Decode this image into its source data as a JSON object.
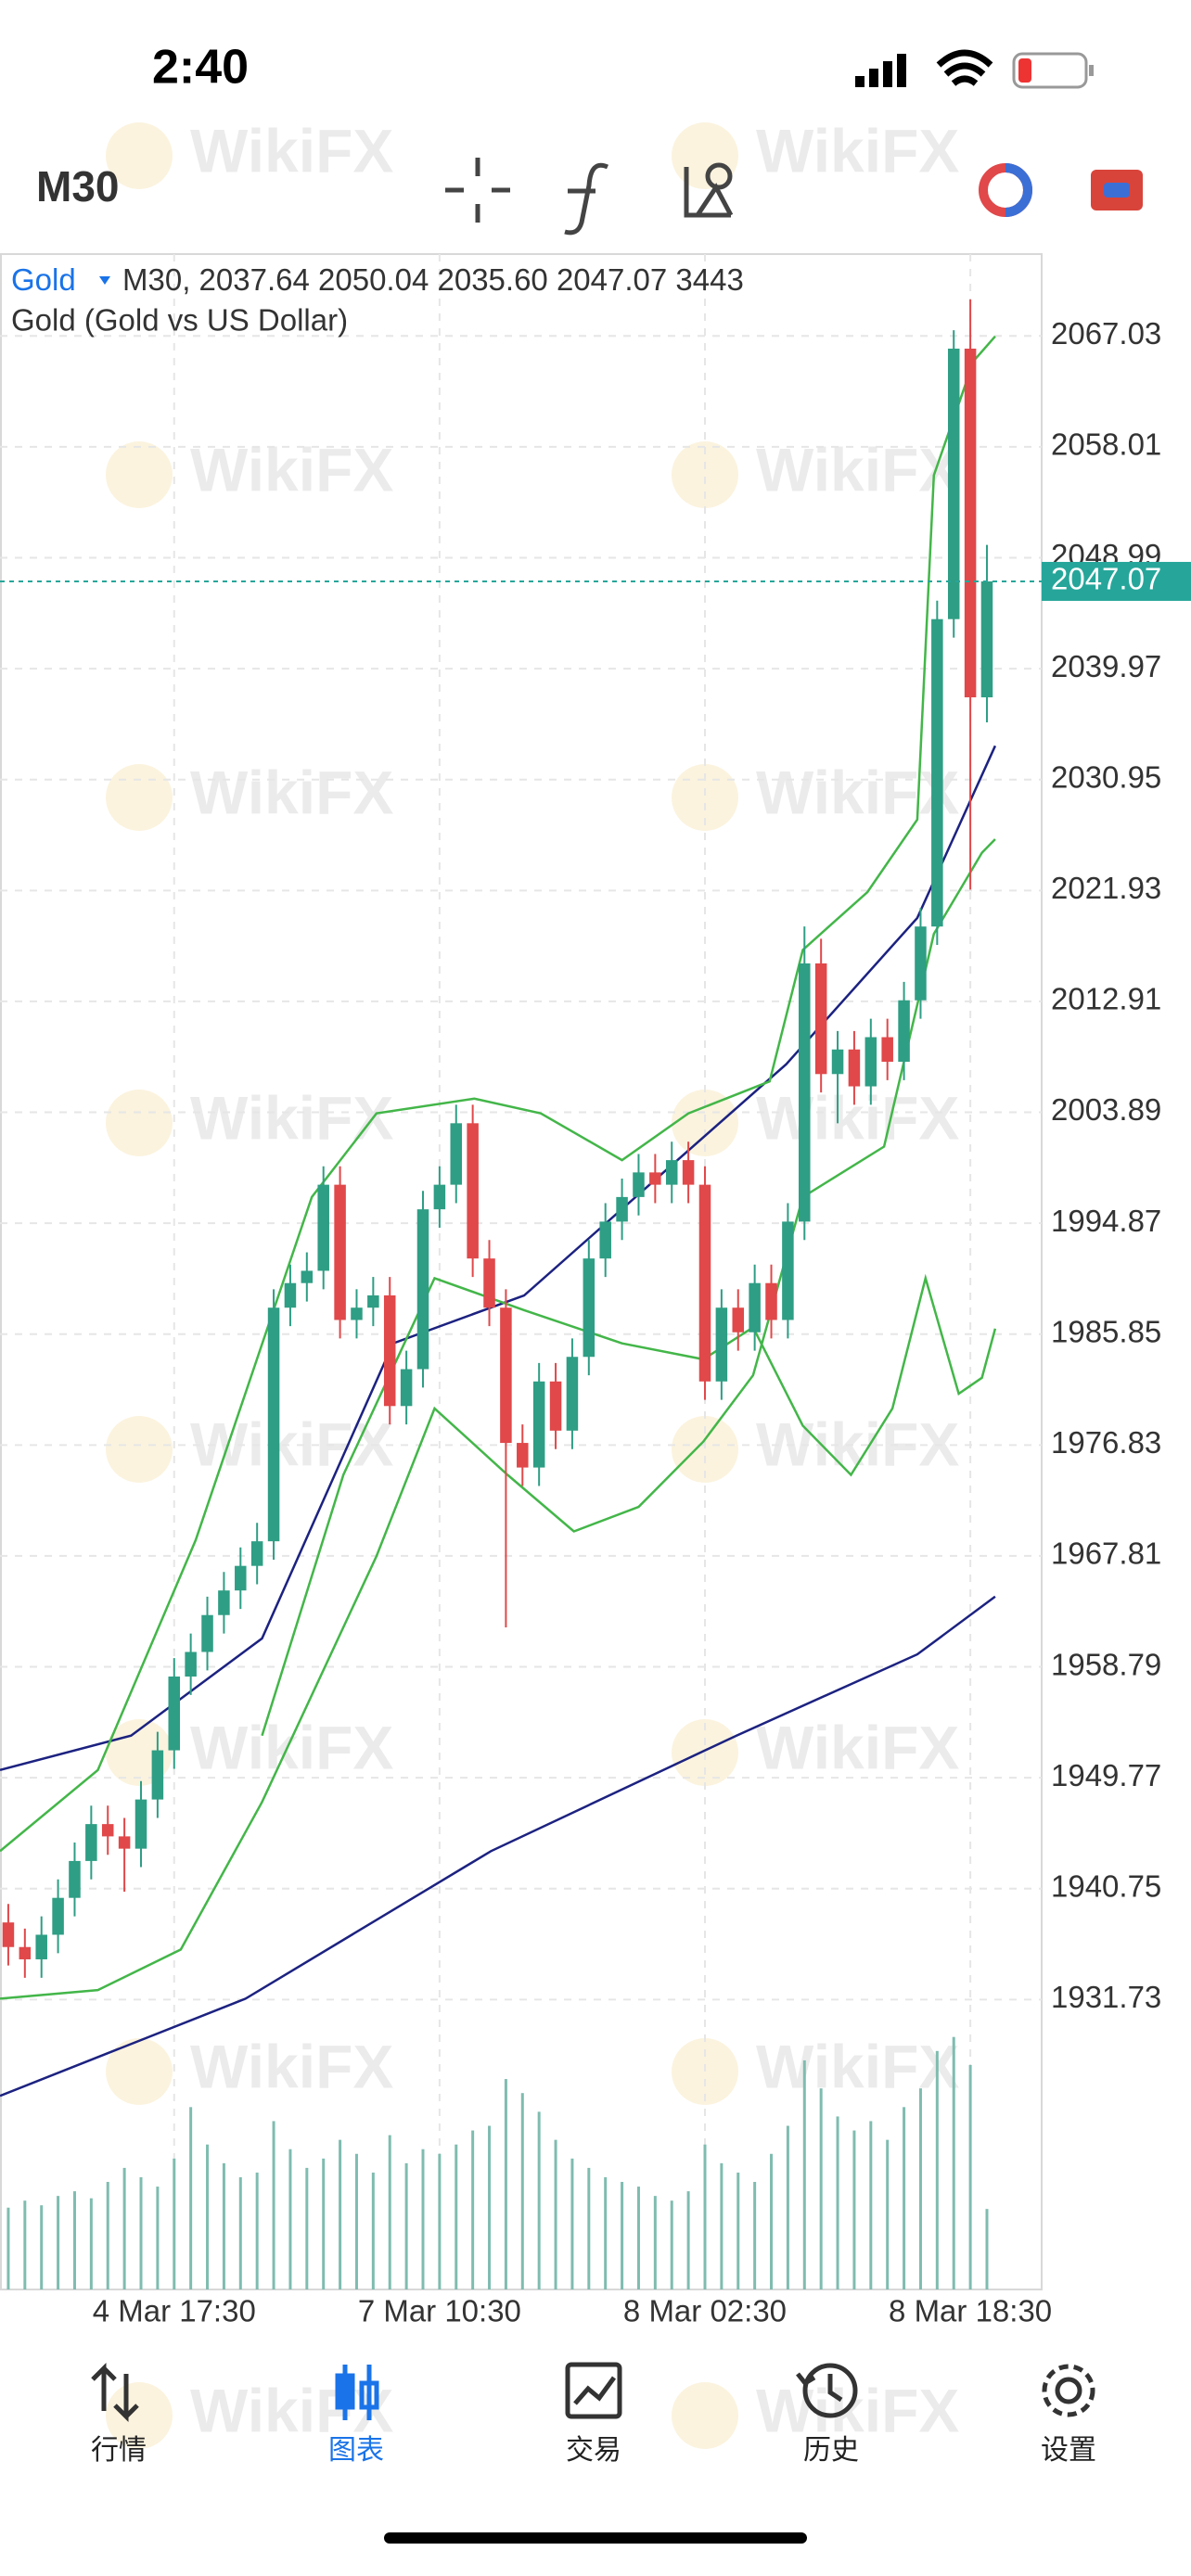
{
  "status": {
    "time": "2:40"
  },
  "toolbar": {
    "timeframe": "M30"
  },
  "watermark": "WikiFX",
  "nav": [
    {
      "label": "行情"
    },
    {
      "label": "图表",
      "active": true
    },
    {
      "label": "交易"
    },
    {
      "label": "历史"
    },
    {
      "label": "设置"
    }
  ],
  "chart_data": {
    "type": "candlestick",
    "symbol": "Gold",
    "header_timeframe": "M30,",
    "description": "Gold (Gold vs US Dollar)",
    "header_labels": [
      "2037.64",
      "2050.04",
      "2035.60",
      "2047.07",
      "3443"
    ],
    "up_color": "#2e9e84",
    "down_color": "#e0484a",
    "grid": true,
    "ylim": [
      1908.15,
      2073.69
    ],
    "yticks": [
      2067.03,
      2058.01,
      2048.99,
      2039.97,
      2030.95,
      2021.93,
      2012.91,
      2003.89,
      1994.87,
      1985.85,
      1976.83,
      1967.81,
      1958.79,
      1949.77,
      1940.75,
      1931.73
    ],
    "xlim": [
      -0.5,
      62.3
    ],
    "categories": [
      null,
      null,
      null,
      null,
      null,
      null,
      null,
      null,
      null,
      null,
      "4 Mar 17:30",
      null,
      null,
      null,
      null,
      null,
      null,
      null,
      null,
      null,
      null,
      null,
      null,
      null,
      null,
      null,
      "7 Mar 10:30",
      null,
      null,
      null,
      null,
      null,
      null,
      null,
      null,
      null,
      null,
      null,
      null,
      null,
      null,
      null,
      "8 Mar 02:30",
      null,
      null,
      null,
      null,
      null,
      null,
      null,
      null,
      null,
      null,
      null,
      null,
      null,
      null,
      null,
      "8 Mar 18:30",
      null
    ],
    "candles": [
      [
        1938,
        1939.5,
        1934.5,
        1936
      ],
      [
        1936,
        1937.5,
        1933.5,
        1935
      ],
      [
        1935,
        1938.5,
        1933.5,
        1937
      ],
      [
        1937,
        1941.5,
        1935.5,
        1940
      ],
      [
        1940,
        1944.5,
        1938.5,
        1943
      ],
      [
        1943,
        1947.5,
        1941.5,
        1946
      ],
      [
        1946,
        1947.5,
        1943.5,
        1945
      ],
      [
        1945,
        1946.5,
        1940.5,
        1944
      ],
      [
        1944,
        1949.5,
        1942.5,
        1948
      ],
      [
        1948,
        1953.5,
        1946.5,
        1952
      ],
      [
        1952,
        1959.5,
        1950.5,
        1958
      ],
      [
        1958,
        1961.5,
        1956.5,
        1960
      ],
      [
        1960,
        1964.5,
        1958.5,
        1963
      ],
      [
        1963,
        1966.5,
        1961.5,
        1965
      ],
      [
        1965,
        1968.5,
        1963.5,
        1967
      ],
      [
        1967,
        1970.5,
        1965.5,
        1969
      ],
      [
        1969,
        1989.5,
        1967.5,
        1988
      ],
      [
        1988,
        1991.5,
        1986.5,
        1990
      ],
      [
        1990,
        1992.5,
        1988.5,
        1991
      ],
      [
        1991,
        1999.5,
        1989.5,
        1998
      ],
      [
        1998,
        1999.5,
        1985.5,
        1987
      ],
      [
        1987,
        1989.5,
        1985.5,
        1988
      ],
      [
        1988,
        1990.5,
        1986.5,
        1989
      ],
      [
        1989,
        1990.5,
        1978.5,
        1980
      ],
      [
        1980,
        1984.5,
        1978.5,
        1983
      ],
      [
        1983,
        1997.5,
        1981.5,
        1996
      ],
      [
        1996,
        1999.5,
        1994.5,
        1998
      ],
      [
        1998,
        2004.5,
        1996.5,
        2003
      ],
      [
        2003,
        2004.5,
        1990.5,
        1992
      ],
      [
        1992,
        1993.5,
        1986.5,
        1988
      ],
      [
        1988,
        1989.5,
        1962,
        1977
      ],
      [
        1977,
        1978.5,
        1973.5,
        1975
      ],
      [
        1975,
        1983.5,
        1973.5,
        1982
      ],
      [
        1982,
        1983.5,
        1976.5,
        1978
      ],
      [
        1978,
        1985.5,
        1976.5,
        1984
      ],
      [
        1984,
        1993.5,
        1982.5,
        1992
      ],
      [
        1992,
        1996.5,
        1990.5,
        1995
      ],
      [
        1995,
        1998.5,
        1993.5,
        1997
      ],
      [
        1997,
        2000.5,
        1995.5,
        1999
      ],
      [
        1999,
        2000.5,
        1996.5,
        1998
      ],
      [
        1998,
        2001.5,
        1996.5,
        2000
      ],
      [
        2000,
        2001.5,
        1996.5,
        1998
      ],
      [
        1998,
        1999.5,
        1980.5,
        1982
      ],
      [
        1982,
        1989.5,
        1980.5,
        1988
      ],
      [
        1988,
        1989.5,
        1984.5,
        1986
      ],
      [
        1986,
        1991.5,
        1984.5,
        1990
      ],
      [
        1990,
        1991.5,
        1985.5,
        1987
      ],
      [
        1987,
        1996.5,
        1985.5,
        1995
      ],
      [
        1995,
        2019,
        1993.5,
        2016
      ],
      [
        2016,
        2018,
        2005.5,
        2007
      ],
      [
        2007,
        2010.5,
        2003,
        2009
      ],
      [
        2009,
        2010.5,
        2004.5,
        2006
      ],
      [
        2006,
        2011.5,
        2004.5,
        2010
      ],
      [
        2010,
        2011.5,
        2006.5,
        2008
      ],
      [
        2008,
        2014.5,
        2006.5,
        2013
      ],
      [
        2013,
        2020.5,
        2011.5,
        2019
      ],
      [
        2019,
        2045.5,
        2017.5,
        2044
      ],
      [
        2044,
        2067.5,
        2042.5,
        2066
      ],
      [
        2066,
        2070,
        2022,
        2037.64
      ],
      [
        2037.64,
        2050.04,
        2035.6,
        2047.07
      ]
    ],
    "volume": [
      3500,
      3800,
      3600,
      4000,
      4200,
      3900,
      4600,
      5200,
      4800,
      4400,
      5600,
      7800,
      6200,
      5400,
      4800,
      5000,
      7200,
      6000,
      5200,
      5600,
      6400,
      5800,
      5000,
      6600,
      5400,
      6000,
      5800,
      6200,
      6800,
      7000,
      9000,
      8400,
      7600,
      6400,
      5600,
      5200,
      4800,
      4600,
      4400,
      4000,
      3800,
      4200,
      6200,
      5400,
      5000,
      4600,
      5800,
      7000,
      9800,
      8600,
      7400,
      6800,
      7200,
      6400,
      7800,
      8600,
      10200,
      10800,
      9600,
      3443
    ],
    "vlim": [
      0,
      14000
    ],
    "lines": [
      {
        "color": "#1c2280",
        "x": [
          -0.5,
          7.4,
          15.3,
          23.2,
          31.1,
          39,
          46.9,
          54.8,
          59.5
        ],
        "values": [
          1950.4,
          1953.2,
          1961.1,
          1985.1,
          1989,
          1998.4,
          2007.8,
          2019.7,
          2033.7
        ]
      },
      {
        "color": "#1c2280",
        "x": [
          -0.5,
          14.3,
          29.1,
          43.9,
          54.8,
          59.5
        ],
        "values": [
          1923.9,
          1931.8,
          1943.8,
          1953.2,
          1959.8,
          1964.5
        ]
      },
      {
        "color": "#43b649",
        "x": [
          -0.5,
          5.4,
          11.3,
          18.3,
          22.2,
          28.1,
          32.1,
          37,
          41,
          45.9,
          47.9,
          51.8,
          54.8,
          55.8,
          58.2,
          59.5
        ],
        "values": [
          1943.8,
          1950.4,
          1969.1,
          1997,
          2003.8,
          2005,
          2003.8,
          2000,
          2003.8,
          2006.4,
          2017.1,
          2021.8,
          2027.7,
          2055.7,
          2065,
          2067
        ]
      },
      {
        "color": "#43b649",
        "x": [
          -0.5,
          5.4,
          10.4,
          15.3,
          22.2,
          25.7,
          30.1,
          34.1,
          38,
          41.9,
          44.9,
          47.9,
          52.8,
          55.8,
          58.7,
          59.5
        ],
        "values": [
          1931.8,
          1932.5,
          1935.8,
          1947.8,
          1967.8,
          1979.8,
          1974.4,
          1969.8,
          1971.8,
          1977.1,
          1982.5,
          1997,
          2001.1,
          2018.4,
          2025,
          2026.1
        ]
      },
      {
        "color": "#43b649",
        "x": [
          15.3,
          20.2,
          25.7,
          31.1,
          37,
          41.9,
          44.9,
          47.9,
          50.8,
          53.3,
          55.3,
          57.3,
          58.7,
          59.5
        ],
        "values": [
          1953.2,
          1974.4,
          1990.4,
          1987.8,
          1985.1,
          1983.8,
          1986.4,
          1978.4,
          1974.4,
          1979.8,
          1990.4,
          1981,
          1982.3,
          1986.3
        ]
      }
    ]
  }
}
